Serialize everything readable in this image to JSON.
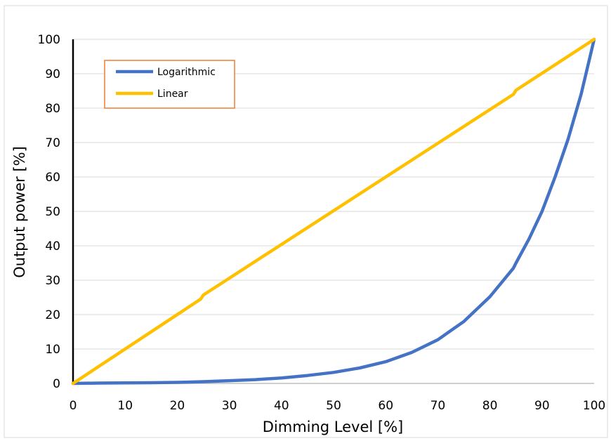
{
  "chart_data": {
    "type": "line",
    "title": "",
    "xlabel": "Dimming Level [%]",
    "ylabel": "Output power [%]",
    "xlim": [
      0,
      100
    ],
    "ylim": [
      0,
      100
    ],
    "x_ticks": [
      0,
      10,
      20,
      30,
      40,
      50,
      60,
      70,
      80,
      90,
      100
    ],
    "y_ticks": [
      0,
      10,
      20,
      30,
      40,
      50,
      60,
      70,
      80,
      90,
      100
    ],
    "x_tick_labels": [
      "0",
      "10",
      "20",
      "30",
      "40",
      "50",
      "60",
      "70",
      "80",
      "90",
      "100"
    ],
    "y_tick_labels": [
      "0",
      "10",
      "20",
      "30",
      "40",
      "50",
      "60",
      "70",
      "80",
      "90",
      "100"
    ],
    "grid": "horizontal",
    "legend_position": "top-left",
    "series": [
      {
        "name": "Logarithmic",
        "color": "#4472C4",
        "x": [
          0,
          5,
          10,
          15,
          20,
          25,
          30,
          35,
          40,
          45,
          50,
          55,
          60,
          65,
          70,
          75,
          80,
          84.5,
          85,
          87.5,
          90,
          92.5,
          95,
          97.5,
          100
        ],
        "y": [
          0,
          0.1,
          0.15,
          0.2,
          0.3,
          0.5,
          0.8,
          1.1,
          1.6,
          2.3,
          3.2,
          4.5,
          6.3,
          9,
          12.7,
          18,
          25.2,
          33.5,
          35,
          42,
          50,
          60,
          71,
          84,
          100
        ]
      },
      {
        "name": "Linear",
        "color": "#FFC000",
        "x": [
          0,
          24.5,
          25,
          84.5,
          85,
          100
        ],
        "y": [
          0,
          24.5,
          25.7,
          84,
          85.2,
          100
        ]
      }
    ]
  }
}
